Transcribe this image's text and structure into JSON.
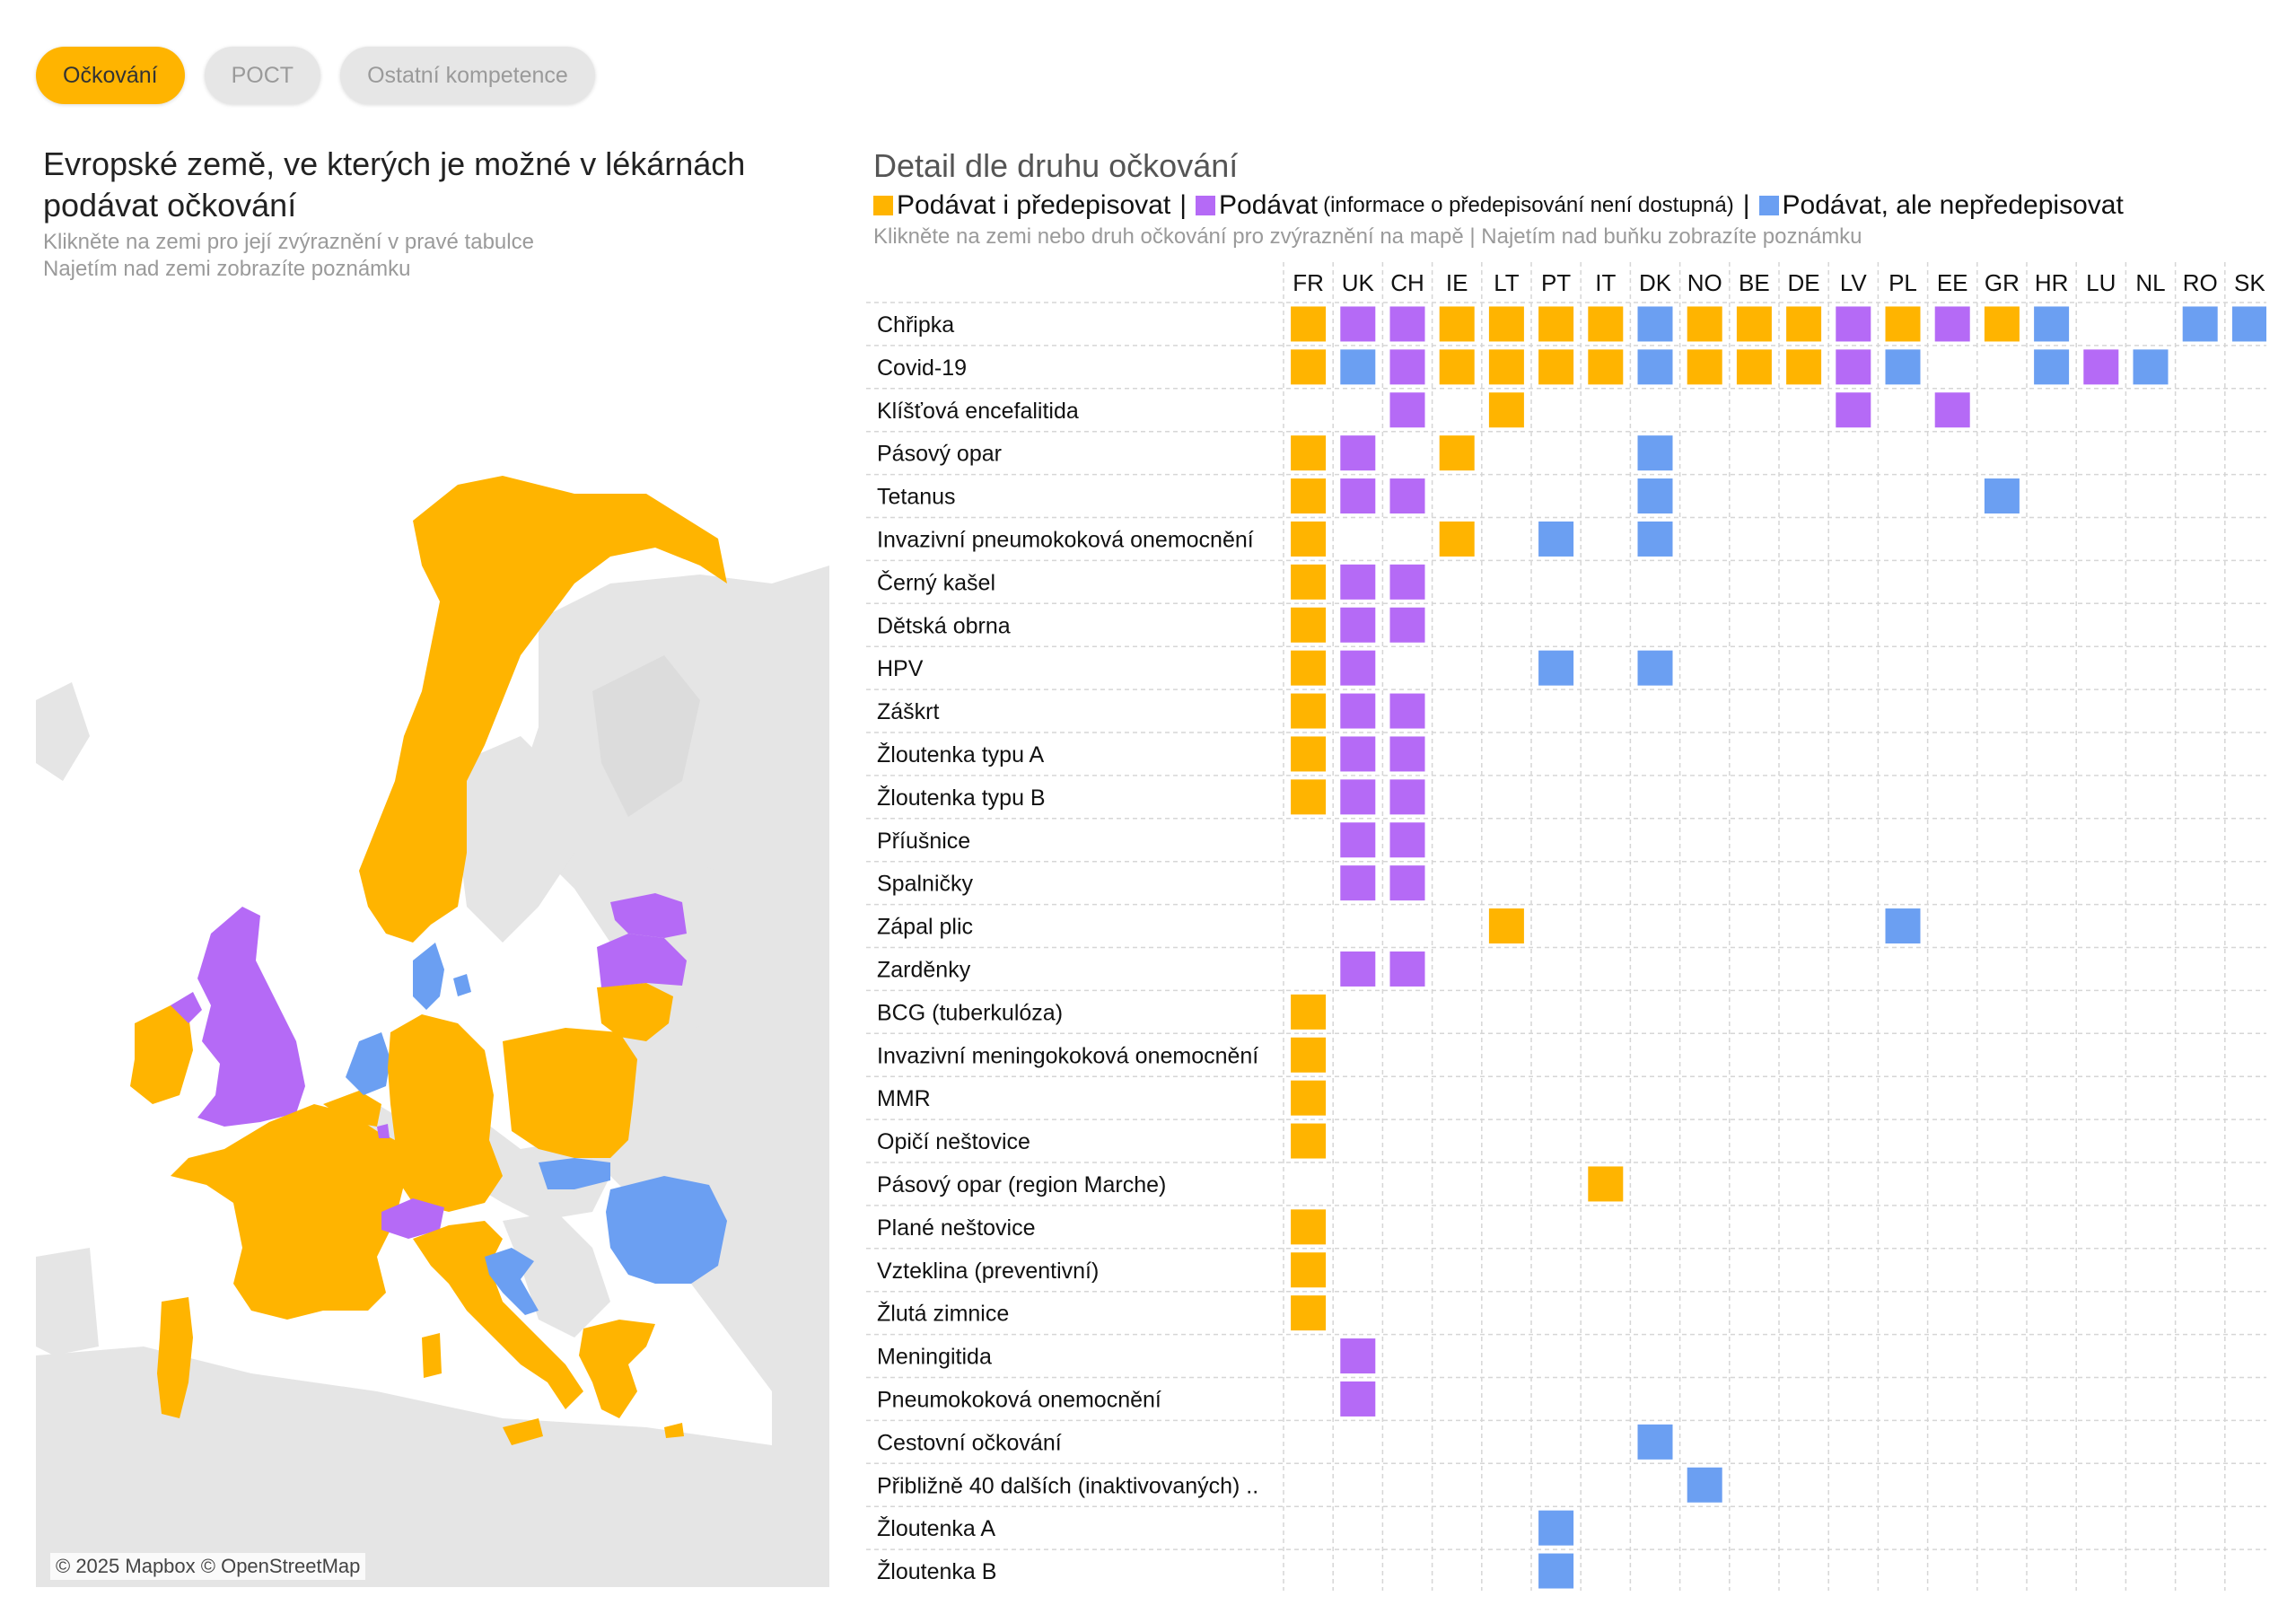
{
  "tabs": [
    {
      "label": "Očkování",
      "active": true
    },
    {
      "label": "POCT",
      "active": false
    },
    {
      "label": "Ostatní kompetence",
      "active": false
    }
  ],
  "map": {
    "title": "Evropské země, ve kterých je možné v lékárnách podávat očkování",
    "subtitle1": "Klikněte na zemi pro její zvýraznění v pravé tabulce",
    "subtitle2": "Najetím nad zemi zobrazíte poznámku",
    "attribution": "© 2025 Mapbox © OpenStreetMap"
  },
  "colors": {
    "yellow": "#ffb400",
    "purple": "#b56af6",
    "blue": "#6b9ff2",
    "land": "#e5e5e5",
    "grid": "#d6d6d6"
  },
  "detail": {
    "title": "Detail dle druhu očkování",
    "legend": {
      "y_label": "Podávat i předepisovat",
      "p_label": "Podávat",
      "p_note": "(informace o předepisování není dostupná)",
      "b_label": "Podávat, ale nepředepisovat",
      "sep": "|"
    },
    "subtitle": "Klikněte na zemi nebo druh očkování pro zvýraznění na mapě | Najetím nad buňku zobrazíte poznámku"
  },
  "table": {
    "countries": [
      "FR",
      "UK",
      "CH",
      "IE",
      "LT",
      "PT",
      "IT",
      "DK",
      "NO",
      "BE",
      "DE",
      "LV",
      "PL",
      "EE",
      "GR",
      "HR",
      "LU",
      "NL",
      "RO",
      "SK"
    ],
    "rows": [
      {
        "label": "Chřipka",
        "cells": "YPPYYYYBYYYPYPYB..BB"
      },
      {
        "label": "Covid-19",
        "cells": "YBPYYYYBYYYPB..BPB.."
      },
      {
        "label": "Klíšťová encefalitida",
        "cells": "..P.Y......P.P......"
      },
      {
        "label": "Pásový opar",
        "cells": "YP.Y...B............"
      },
      {
        "label": "Tetanus",
        "cells": "YPP....B......B....."
      },
      {
        "label": "Invazivní pneumokoková onemocnění",
        "cells": "Y..Y.B.B............"
      },
      {
        "label": "Černý kašel",
        "cells": "YPP................."
      },
      {
        "label": "Dětská obrna",
        "cells": "YPP................."
      },
      {
        "label": "HPV",
        "cells": "YP...B.B............"
      },
      {
        "label": "Záškrt",
        "cells": "YPP................."
      },
      {
        "label": "Žloutenka typu A",
        "cells": "YPP................."
      },
      {
        "label": "Žloutenka typu B",
        "cells": "YPP................."
      },
      {
        "label": "Příušnice",
        "cells": ".PP................."
      },
      {
        "label": "Spalničky",
        "cells": ".PP................."
      },
      {
        "label": "Zápal plic",
        "cells": "....Y.......B......."
      },
      {
        "label": "Zarděnky",
        "cells": ".PP................."
      },
      {
        "label": "BCG (tuberkulóza)",
        "cells": "Y..................."
      },
      {
        "label": "Invazivní meningokoková onemocnění",
        "cells": "Y..................."
      },
      {
        "label": "MMR",
        "cells": "Y..................."
      },
      {
        "label": "Opičí neštovice",
        "cells": "Y..................."
      },
      {
        "label": "Pásový opar (region Marche)",
        "cells": "......Y............."
      },
      {
        "label": "Plané neštovice",
        "cells": "Y..................."
      },
      {
        "label": "Vzteklina (preventivní)",
        "cells": "Y..................."
      },
      {
        "label": "Žlutá zimnice",
        "cells": "Y..................."
      },
      {
        "label": "Meningitida",
        "cells": ".P.................."
      },
      {
        "label": "Pneumokoková onemocnění",
        "cells": ".P.................."
      },
      {
        "label": "Cestovní očkování",
        "cells": ".......B............"
      },
      {
        "label": "Přibližně 40 dalších (inaktivovaných) ..",
        "cells": "........B..........."
      },
      {
        "label": "Žloutenka A",
        "cells": ".....B.............."
      },
      {
        "label": "Žloutenka B",
        "cells": ".....B.............."
      }
    ]
  }
}
